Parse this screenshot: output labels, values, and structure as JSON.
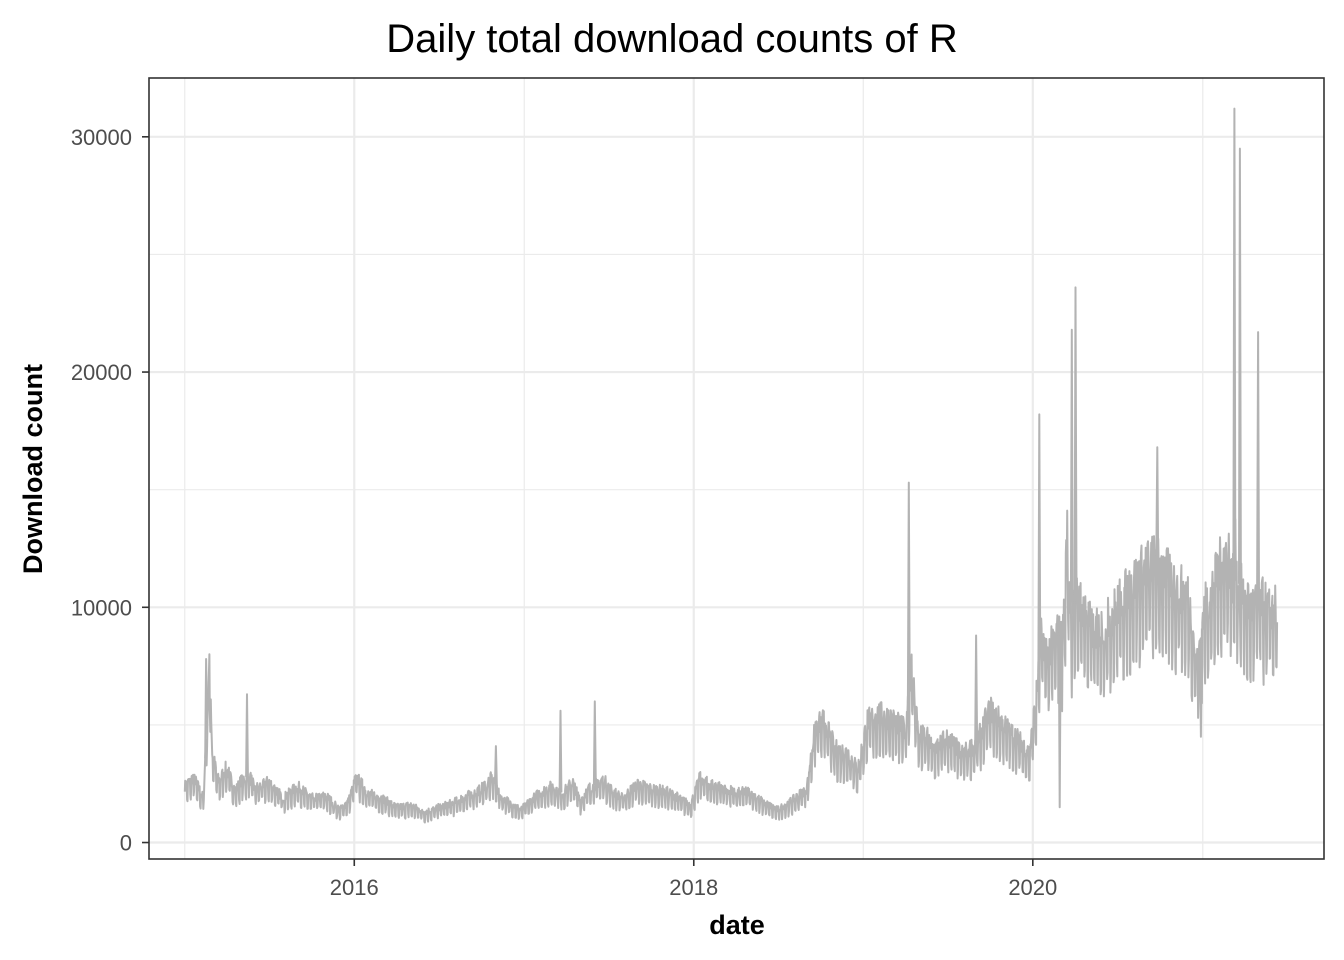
{
  "chart_data": {
    "type": "line",
    "title": "Daily total download counts of R",
    "xlabel": "date",
    "ylabel": "Download count",
    "xlim": [
      "2014-10-16",
      "2021-09-19"
    ],
    "ylim": [
      -700,
      32500
    ],
    "x_ticks": [
      {
        "label": "2016",
        "date": "2016-01-01"
      },
      {
        "label": "2018",
        "date": "2018-01-01"
      },
      {
        "label": "2020",
        "date": "2020-01-01"
      }
    ],
    "x_minor_ticks": [
      "2015-01-01",
      "2017-01-01",
      "2019-01-01",
      "2021-01-01"
    ],
    "y_ticks": [
      {
        "label": "0",
        "value": 0
      },
      {
        "label": "10000",
        "value": 10000
      },
      {
        "label": "20000",
        "value": 20000
      },
      {
        "label": "30000",
        "value": 30000
      }
    ],
    "y_minor_ticks": [
      5000,
      15000,
      25000
    ],
    "grid": true,
    "line_color": "#b3b3b3",
    "series": [
      {
        "x": [
          "2015-01-01",
          "2015-01-20",
          "2015-02-10",
          "2015-02-24",
          "2015-03-01",
          "2015-03-15",
          "2015-04-01",
          "2015-04-20",
          "2015-05-01",
          "2015-05-20",
          "2015-06-01",
          "2015-07-01",
          "2015-08-01",
          "2015-09-01",
          "2015-10-01",
          "2015-11-01",
          "2015-12-01",
          "2015-12-20",
          "2016-01-05",
          "2016-02-01",
          "2016-03-01",
          "2016-04-01",
          "2016-05-01",
          "2016-06-01",
          "2016-07-01",
          "2016-08-01",
          "2016-09-01",
          "2016-10-01",
          "2016-10-25",
          "2016-11-10",
          "2016-12-01",
          "2016-12-25",
          "2017-01-15",
          "2017-02-01",
          "2017-03-01",
          "2017-03-25",
          "2017-04-15",
          "2017-05-01",
          "2017-05-20",
          "2017-06-05",
          "2017-06-20",
          "2017-07-10",
          "2017-08-01",
          "2017-09-01",
          "2017-10-01",
          "2017-11-01",
          "2017-12-01",
          "2017-12-25",
          "2018-01-15",
          "2018-02-01",
          "2018-03-01",
          "2018-04-01",
          "2018-05-01",
          "2018-06-01",
          "2018-07-01",
          "2018-08-01",
          "2018-09-01",
          "2018-09-20",
          "2018-10-10",
          "2018-11-01",
          "2018-12-01",
          "2018-12-20",
          "2019-01-10",
          "2019-02-01",
          "2019-03-01",
          "2019-04-01",
          "2019-04-15",
          "2019-05-01",
          "2019-05-15",
          "2019-06-01",
          "2019-07-01",
          "2019-08-01",
          "2019-09-01",
          "2019-10-01",
          "2019-11-01",
          "2019-12-01",
          "2019-12-25",
          "2020-01-10",
          "2020-01-20",
          "2020-02-01",
          "2020-02-25",
          "2020-03-05",
          "2020-03-15",
          "2020-03-25",
          "2020-04-05",
          "2020-04-20",
          "2020-05-10",
          "2020-06-01",
          "2020-07-01",
          "2020-08-01",
          "2020-09-01",
          "2020-09-20",
          "2020-10-10",
          "2020-11-01",
          "2020-12-01",
          "2020-12-20",
          "2021-01-05",
          "2021-01-25",
          "2021-02-10",
          "2021-02-25",
          "2021-03-05",
          "2021-03-12",
          "2021-03-20",
          "2021-04-01",
          "2021-04-15",
          "2021-05-01",
          "2021-05-20",
          "2021-06-10"
        ],
        "y": [
          2400,
          2800,
          1900,
          7800,
          3800,
          2600,
          3200,
          2200,
          2600,
          2900,
          2300,
          2600,
          1900,
          2400,
          1900,
          2000,
          1400,
          1800,
          2800,
          2100,
          1900,
          1500,
          1600,
          1300,
          1500,
          1700,
          2000,
          2300,
          2800,
          2000,
          1700,
          1400,
          1800,
          2100,
          2400,
          2100,
          2600,
          1800,
          2300,
          2500,
          2700,
          2200,
          1900,
          2500,
          2300,
          2200,
          1900,
          1600,
          2800,
          2500,
          2400,
          2100,
          2200,
          1700,
          1400,
          1800,
          2300,
          5000,
          5200,
          4000,
          3800,
          3100,
          5200,
          5500,
          5300,
          4800,
          7500,
          4500,
          4600,
          4000,
          4500,
          3800,
          4200,
          5700,
          5000,
          4400,
          3800,
          6500,
          9000,
          8000,
          9000,
          8500,
          13000,
          9500,
          10500,
          10000,
          9000,
          9200,
          10100,
          11000,
          11800,
          12000,
          11600,
          11000,
          10500,
          7600,
          10000,
          11000,
          12000,
          12500,
          11000,
          12500,
          11000,
          10500,
          10000,
          10500,
          10000,
          10000
        ],
        "peaks": [
          {
            "x": "2015-02-16",
            "y": 7800
          },
          {
            "x": "2015-05-15",
            "y": 6300
          },
          {
            "x": "2016-11-01",
            "y": 4100
          },
          {
            "x": "2017-03-20",
            "y": 5600
          },
          {
            "x": "2017-06-02",
            "y": 6000
          },
          {
            "x": "2019-04-09",
            "y": 15300
          },
          {
            "x": "2019-09-01",
            "y": 8800
          },
          {
            "x": "2020-01-15",
            "y": 18200
          },
          {
            "x": "2020-03-25",
            "y": 21800
          },
          {
            "x": "2020-04-02",
            "y": 23600
          },
          {
            "x": "2020-09-25",
            "y": 16800
          },
          {
            "x": "2021-03-10",
            "y": 31200
          },
          {
            "x": "2021-03-22",
            "y": 29500
          },
          {
            "x": "2021-04-30",
            "y": 21700
          }
        ],
        "dips": [
          {
            "x": "2020-02-28",
            "y": 1500
          },
          {
            "x": "2020-12-28",
            "y": 4500
          }
        ]
      }
    ]
  }
}
